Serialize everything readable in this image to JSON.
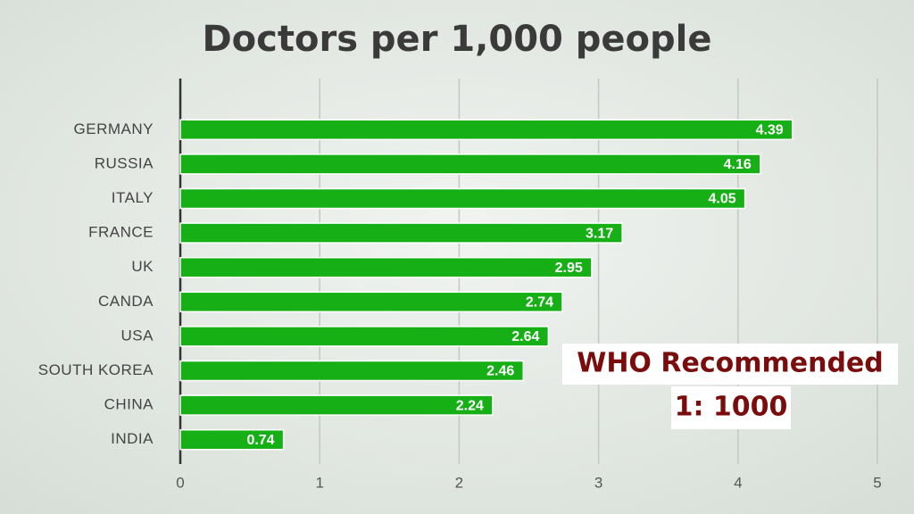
{
  "chart_data": {
    "type": "bar",
    "orientation": "horizontal",
    "title": "Doctors per 1,000 people",
    "categories": [
      "GERMANY",
      "RUSSIA",
      "ITALY",
      "FRANCE",
      "UK",
      "CANDA",
      "USA",
      "SOUTH KOREA",
      "CHINA",
      "INDIA"
    ],
    "values": [
      4.39,
      4.16,
      4.05,
      3.17,
      2.95,
      2.74,
      2.64,
      2.46,
      2.24,
      0.74
    ],
    "color": "#16b016",
    "xlim": [
      0,
      5
    ],
    "xticks": [
      0,
      1,
      2,
      3,
      4,
      5
    ],
    "grid": true,
    "annotations": [
      "WHO Recommended",
      "1: 1000"
    ]
  }
}
